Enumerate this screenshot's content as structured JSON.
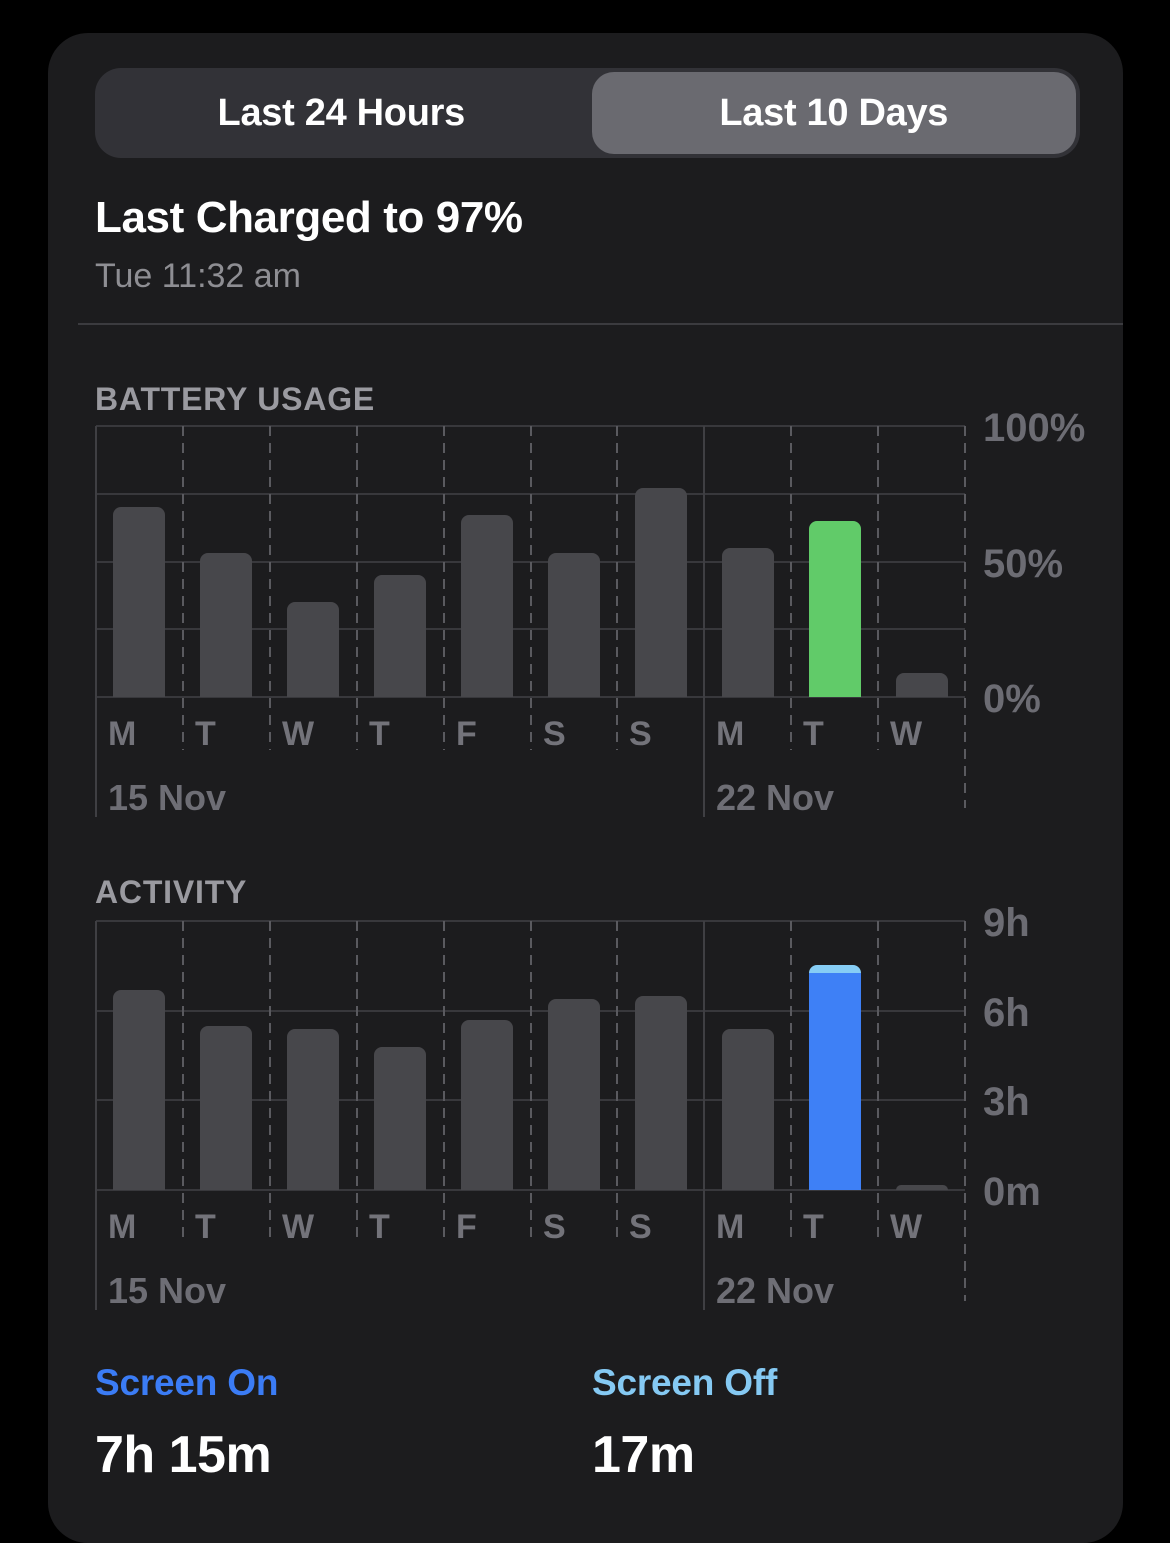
{
  "tabs": [
    {
      "label": "Last 24 Hours",
      "selected": false
    },
    {
      "label": "Last 10 Days",
      "selected": true
    }
  ],
  "header": {
    "title": "Last Charged to 97%",
    "subtitle": "Tue 11:32 am"
  },
  "chart_data": [
    {
      "type": "bar",
      "title": "BATTERY USAGE",
      "categories": [
        "M",
        "T",
        "W",
        "T",
        "F",
        "S",
        "S",
        "M",
        "T",
        "W"
      ],
      "values": [
        70,
        53,
        35,
        45,
        67,
        53,
        77,
        55,
        65,
        9
      ],
      "unit": "%",
      "ylim": [
        0,
        100
      ],
      "gridlines": [
        0,
        25,
        50,
        75,
        100
      ],
      "yticks": [
        {
          "value": 100,
          "label": "100%"
        },
        {
          "value": 50,
          "label": "50%"
        },
        {
          "value": 0,
          "label": "0%"
        }
      ],
      "highlight_index": 8,
      "highlight_color": "#61cb69",
      "bar_color": "#47474b",
      "date_markers": [
        {
          "index": 0,
          "label": "15 Nov"
        },
        {
          "index": 7,
          "label": "22 Nov"
        }
      ]
    },
    {
      "type": "bar",
      "title": "ACTIVITY",
      "categories": [
        "M",
        "T",
        "W",
        "T",
        "F",
        "S",
        "S",
        "M",
        "T",
        "W"
      ],
      "values": [
        6.7,
        5.5,
        5.4,
        4.8,
        5.7,
        6.4,
        6.5,
        5.4,
        7.25,
        0.17
      ],
      "unit": "h",
      "ylim": [
        0,
        9
      ],
      "gridlines": [
        0,
        3,
        6,
        9
      ],
      "yticks": [
        {
          "value": 9,
          "label": "9h"
        },
        {
          "value": 6,
          "label": "6h"
        },
        {
          "value": 3,
          "label": "3h"
        },
        {
          "value": 0,
          "label": "0m"
        }
      ],
      "highlight_index": 8,
      "highlight_color": "#3e80f6",
      "bar_color": "#47474b",
      "stack_overlay": {
        "index": 8,
        "value": 0.28,
        "color": "#86cdf5"
      },
      "date_markers": [
        {
          "index": 0,
          "label": "15 Nov"
        },
        {
          "index": 7,
          "label": "22 Nov"
        }
      ]
    }
  ],
  "stats": [
    {
      "label": "Screen On",
      "value": "7h 15m",
      "label_color": "#3b7cf5"
    },
    {
      "label": "Screen Off",
      "value": "17m",
      "label_color": "#85c9f3"
    }
  ]
}
